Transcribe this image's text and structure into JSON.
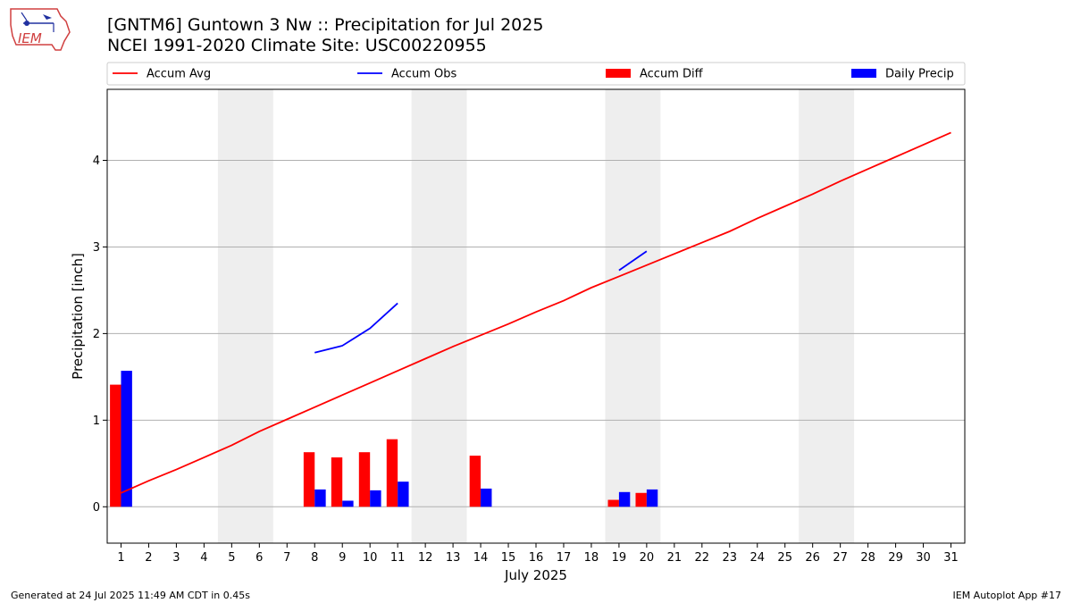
{
  "header": {
    "logo_text": "IEM",
    "title_line1": "[GNTM6] Guntown 3 Nw :: Precipitation for Jul 2025",
    "title_line2": "NCEI 1991-2020 Climate Site: USC00220955"
  },
  "footer": {
    "left": "Generated at 24 Jul 2025 11:49 AM CDT in 0.45s",
    "right": "IEM Autoplot App #17"
  },
  "colors": {
    "avg": "#ff0000",
    "obs": "#0000ff",
    "diff": "#ff0000",
    "daily": "#0000ff",
    "weekend": "#eeeeee",
    "grid": "#b0b0b0"
  },
  "chart_data": {
    "type": "bar",
    "xlabel": "July 2025",
    "ylabel": "Precipitation [inch]",
    "xlim": [
      0.5,
      31.5
    ],
    "ylim": [
      -0.42,
      4.82
    ],
    "y_ticks": [
      0,
      1,
      2,
      3,
      4
    ],
    "days": [
      1,
      2,
      3,
      4,
      5,
      6,
      7,
      8,
      9,
      10,
      11,
      12,
      13,
      14,
      15,
      16,
      17,
      18,
      19,
      20,
      21,
      22,
      23,
      24,
      25,
      26,
      27,
      28,
      29,
      30,
      31
    ],
    "weekend_spans": [
      [
        5,
        6
      ],
      [
        12,
        13
      ],
      [
        19,
        20
      ],
      [
        26,
        27
      ]
    ],
    "grid": true,
    "legend_position": "top",
    "legend": [
      "Accum Avg",
      "Accum Obs",
      "Accum Diff",
      "Daily Precip"
    ],
    "series": [
      {
        "name": "Accum Avg",
        "kind": "line",
        "x": [
          1,
          2,
          3,
          4,
          5,
          6,
          7,
          8,
          9,
          10,
          11,
          12,
          13,
          14,
          15,
          16,
          17,
          18,
          19,
          20,
          21,
          22,
          23,
          24,
          25,
          26,
          27,
          28,
          29,
          30,
          31
        ],
        "values": [
          0.16,
          0.3,
          0.43,
          0.57,
          0.71,
          0.87,
          1.01,
          1.15,
          1.29,
          1.43,
          1.57,
          1.71,
          1.85,
          1.98,
          2.11,
          2.25,
          2.38,
          2.53,
          2.66,
          2.79,
          2.92,
          3.05,
          3.18,
          3.33,
          3.47,
          3.61,
          3.76,
          3.9,
          4.04,
          4.18,
          4.32
        ]
      },
      {
        "name": "Accum Obs",
        "kind": "line",
        "segments": [
          {
            "x": [
              8,
              9,
              10,
              11
            ],
            "values": [
              1.78,
              1.86,
              2.06,
              2.35
            ]
          },
          {
            "x": [
              19,
              20
            ],
            "values": [
              2.73,
              2.95
            ]
          }
        ]
      },
      {
        "name": "Accum Diff",
        "kind": "bar",
        "x": [
          1,
          8,
          9,
          10,
          11,
          14,
          19,
          20
        ],
        "values": [
          1.41,
          0.63,
          0.57,
          0.63,
          0.78,
          0.59,
          0.08,
          0.16
        ]
      },
      {
        "name": "Daily Precip",
        "kind": "bar",
        "x": [
          1,
          8,
          9,
          10,
          11,
          14,
          19,
          20
        ],
        "values": [
          1.57,
          0.2,
          0.07,
          0.19,
          0.29,
          0.21,
          0.17,
          0.2
        ]
      }
    ]
  }
}
